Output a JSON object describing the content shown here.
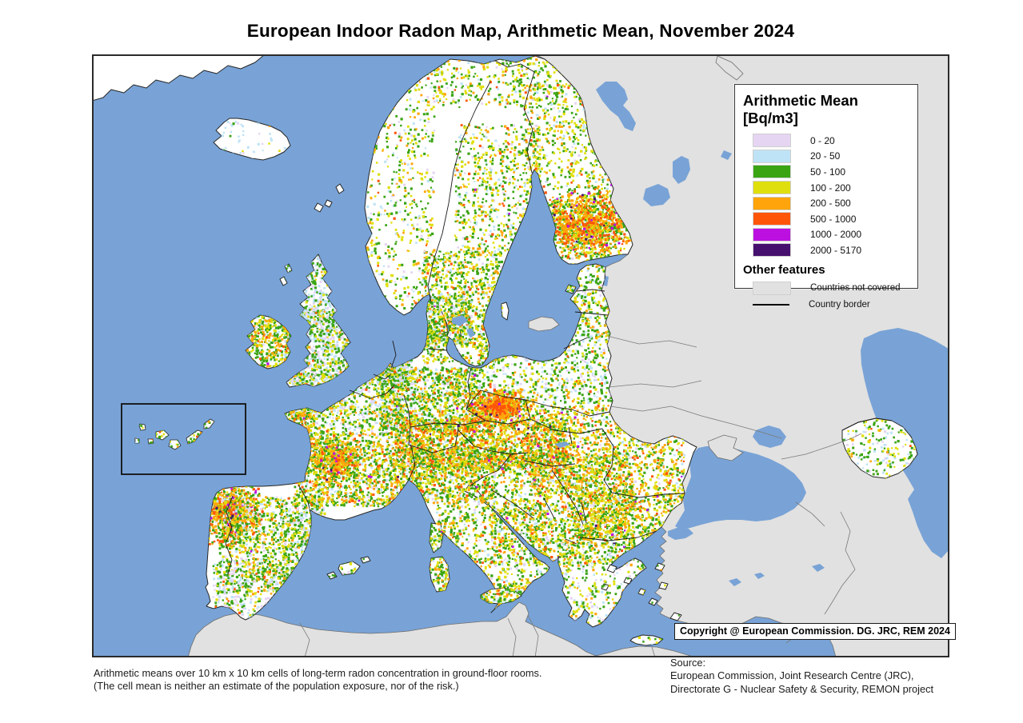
{
  "title": "European Indoor Radon Map, Arithmetic Mean, November 2024",
  "legend": {
    "title": "Arithmetic Mean [Bq/m3]",
    "classes": [
      {
        "label": "0 - 20",
        "color": "#E5D5F2"
      },
      {
        "label": "20 - 50",
        "color": "#BFE3F6"
      },
      {
        "label": "50 - 100",
        "color": "#3AA413"
      },
      {
        "label": "100 - 200",
        "color": "#E0DF0E"
      },
      {
        "label": "200 - 500",
        "color": "#FFA40A"
      },
      {
        "label": "500 - 1000",
        "color": "#FF5508"
      },
      {
        "label": "1000 - 2000",
        "color": "#BB10E0"
      },
      {
        "label": "2000 - 5170",
        "color": "#46106E"
      }
    ],
    "other_features_title": "Other features",
    "other_features": [
      {
        "label": "Countries not covered",
        "type": "swatch",
        "color": "#E1E1E1"
      },
      {
        "label": "Country border",
        "type": "line",
        "color": "#000000"
      }
    ]
  },
  "map": {
    "sea_color": "#79A3D6",
    "land_not_covered_color": "#E1E1E1",
    "land_covered_color": "#FFFFFF",
    "country_border_color": "#1a1a1a",
    "gray_border_color": "#7a7a7a",
    "copyright": "Copyright @ European Commission. DG. JRC, REM 2024",
    "cell_regions": [
      {
        "name": "iceland",
        "r": [
          150,
          70,
          100,
          65
        ],
        "n": 70,
        "w": [
          3,
          6,
          1,
          0.4,
          0.1,
          0,
          0,
          0
        ]
      },
      {
        "name": "finnmark",
        "r": [
          425,
          0,
          165,
          65
        ],
        "n": 400,
        "w": [
          0.8,
          1,
          4.5,
          3,
          1.3,
          0.4,
          0.05,
          0
        ]
      },
      {
        "name": "norway",
        "r": [
          342,
          20,
          85,
          300
        ],
        "n": 600,
        "w": [
          0.8,
          1,
          4,
          3,
          1.2,
          0.35,
          0.04,
          0
        ]
      },
      {
        "name": "sweden-north",
        "r": [
          452,
          85,
          108,
          165
        ],
        "n": 700,
        "w": [
          0.5,
          1,
          4.2,
          3.2,
          1.3,
          0.35,
          0.04,
          0
        ]
      },
      {
        "name": "sweden-south",
        "r": [
          412,
          245,
          100,
          140
        ],
        "n": 1100,
        "w": [
          0.6,
          1,
          4.5,
          3,
          1.1,
          0.3,
          0.03,
          0
        ]
      },
      {
        "name": "finland-north",
        "r": [
          538,
          35,
          115,
          130
        ],
        "n": 600,
        "w": [
          0.5,
          1,
          4,
          3,
          1.1,
          0.3,
          0.02,
          0
        ]
      },
      {
        "name": "finland-south",
        "r": [
          552,
          160,
          130,
          100
        ],
        "n": 1600,
        "w": [
          0.3,
          0.7,
          3.3,
          2.6,
          2.3,
          1.3,
          0.12,
          0.06
        ],
        "cluster": 1
      },
      {
        "name": "scotland",
        "r": [
          238,
          244,
          85,
          92
        ],
        "n": 800,
        "w": [
          2.2,
          3,
          1.8,
          0.5,
          0.15,
          0.03,
          0,
          0
        ]
      },
      {
        "name": "england-wales",
        "r": [
          240,
          318,
          92,
          102
        ],
        "n": 1300,
        "w": [
          2.6,
          3,
          2.4,
          1,
          0.3,
          0.06,
          0,
          0
        ]
      },
      {
        "name": "ireland",
        "r": [
          188,
          324,
          72,
          74
        ],
        "n": 700,
        "w": [
          0.5,
          0.9,
          4.2,
          2.6,
          1.4,
          0.35,
          0.02,
          0
        ]
      },
      {
        "name": "denmark",
        "r": [
          412,
          300,
          62,
          62
        ],
        "n": 380,
        "w": [
          1,
          1.6,
          4,
          1.6,
          0.4,
          0.05,
          0,
          0
        ]
      },
      {
        "name": "benelux",
        "r": [
          330,
          360,
          70,
          52
        ],
        "n": 650,
        "w": [
          4,
          2.6,
          1.6,
          0.7,
          0.2,
          0.03,
          0,
          0
        ]
      },
      {
        "name": "germany",
        "r": [
          360,
          390,
          120,
          80
        ],
        "n": 1200,
        "w": [
          1.2,
          1.8,
          3.8,
          2.2,
          0.8,
          0.2,
          0.02,
          0
        ]
      },
      {
        "name": "poland",
        "r": [
          480,
          348,
          168,
          88
        ],
        "n": 800,
        "w": [
          1.4,
          2,
          3.6,
          1.8,
          0.5,
          0.1,
          0.01,
          0
        ]
      },
      {
        "name": "baltics",
        "r": [
          540,
          260,
          108,
          92
        ],
        "n": 650,
        "w": [
          0.9,
          1.4,
          4,
          2.4,
          0.8,
          0.15,
          0,
          0
        ]
      },
      {
        "name": "czechia",
        "r": [
          462,
          415,
          92,
          48
        ],
        "n": 700,
        "w": [
          0.2,
          0.4,
          2,
          2.6,
          3,
          1.4,
          0.12,
          0.06
        ],
        "cluster": 1
      },
      {
        "name": "czech-core",
        "r": [
          478,
          428,
          58,
          24
        ],
        "n": 200,
        "w": [
          0,
          0.1,
          0.6,
          1.4,
          3,
          3,
          0.3,
          0.12
        ],
        "cluster": 1
      },
      {
        "name": "alps-austria",
        "r": [
          378,
          455,
          215,
          62
        ],
        "n": 1900,
        "w": [
          0.3,
          0.6,
          3.2,
          3,
          2.2,
          0.8,
          0.08,
          0.03
        ]
      },
      {
        "name": "france-north",
        "r": [
          250,
          398,
          140,
          76
        ],
        "n": 900,
        "w": [
          1.8,
          2,
          3.6,
          1.8,
          0.6,
          0.12,
          0.01,
          0
        ]
      },
      {
        "name": "brittany",
        "r": [
          215,
          428,
          58,
          42
        ],
        "n": 340,
        "w": [
          0.4,
          0.8,
          3.6,
          2,
          1.9,
          0.55,
          0.04,
          0
        ]
      },
      {
        "name": "france-south",
        "r": [
          252,
          472,
          148,
          92
        ],
        "n": 1500,
        "w": [
          0.7,
          1,
          4,
          2.6,
          1.3,
          0.4,
          0.04,
          0.01
        ]
      },
      {
        "name": "massif-central",
        "r": [
          272,
          478,
          66,
          56
        ],
        "n": 500,
        "w": [
          0.2,
          0.4,
          3,
          2.4,
          2.2,
          0.8,
          0.12,
          0.03
        ],
        "cluster": 1
      },
      {
        "name": "iberia-nw",
        "r": [
          126,
          520,
          92,
          96
        ],
        "n": 1000,
        "w": [
          0.35,
          0.55,
          3,
          2,
          2.5,
          1.3,
          0.2,
          0.1
        ],
        "cluster": 1
      },
      {
        "name": "iberia-center",
        "r": [
          158,
          552,
          130,
          120
        ],
        "n": 1100,
        "w": [
          1.1,
          1,
          4,
          2,
          0.8,
          0.2,
          0.02,
          0
        ]
      },
      {
        "name": "iberia-south",
        "r": [
          150,
          630,
          140,
          72
        ],
        "n": 520,
        "w": [
          2.4,
          1.5,
          2.6,
          1.2,
          0.4,
          0.08,
          0,
          0
        ]
      },
      {
        "name": "iberia-east",
        "r": [
          235,
          560,
          55,
          90
        ],
        "n": 300,
        "w": [
          1.6,
          1.4,
          3,
          1.4,
          0.4,
          0.06,
          0,
          0
        ]
      },
      {
        "name": "italy-north",
        "r": [
          398,
          490,
          105,
          70
        ],
        "n": 1000,
        "w": [
          0.8,
          1,
          4,
          2.6,
          1.2,
          0.3,
          0.03,
          0
        ]
      },
      {
        "name": "italy-south",
        "r": [
          430,
          560,
          145,
          132
        ],
        "n": 900,
        "w": [
          1,
          1,
          3.6,
          2.6,
          0.8,
          0.2,
          0.02,
          0
        ]
      },
      {
        "name": "wmed-islands",
        "r": [
          415,
          580,
          40,
          100
        ],
        "n": 300,
        "w": [
          0.4,
          0.7,
          3.6,
          2.6,
          1,
          0.3,
          0.04,
          0
        ]
      },
      {
        "name": "sicily",
        "r": [
          478,
          660,
          64,
          34
        ],
        "n": 170,
        "w": [
          0.5,
          0.8,
          3.6,
          2.6,
          1,
          0.3,
          0,
          0
        ]
      },
      {
        "name": "balkans",
        "r": [
          498,
          498,
          180,
          140
        ],
        "n": 1600,
        "w": [
          0.5,
          0.8,
          3.8,
          2.9,
          1.5,
          0.45,
          0.04,
          0.02
        ]
      },
      {
        "name": "pannonia",
        "r": [
          545,
          438,
          195,
          112
        ],
        "n": 1500,
        "w": [
          0.5,
          0.8,
          3,
          3,
          2,
          0.6,
          0.05,
          0.02
        ]
      },
      {
        "name": "bulgaria",
        "r": [
          600,
          548,
          138,
          58
        ],
        "n": 750,
        "w": [
          0.4,
          0.6,
          3.2,
          3.2,
          1.4,
          0.35,
          0.03,
          0
        ]
      },
      {
        "name": "greece",
        "r": [
          580,
          610,
          155,
          130
        ],
        "n": 700,
        "w": [
          1,
          1.6,
          3.2,
          1.8,
          0.6,
          0.12,
          0,
          0
        ]
      },
      {
        "name": "azerbaijan",
        "r": [
          935,
          452,
          100,
          82
        ],
        "n": 300,
        "w": [
          0.9,
          1.8,
          3.6,
          2,
          0.5,
          0.08,
          0,
          0
        ]
      },
      {
        "name": "canaries",
        "r": [
          45,
          448,
          140,
          62
        ],
        "n": 520,
        "w": [
          0.4,
          0.5,
          4,
          2,
          1,
          0.5,
          0.05,
          0
        ]
      },
      {
        "name": "cyprus",
        "r": [
          842,
          712,
          46,
          22
        ],
        "n": 55,
        "w": [
          1.4,
          2.6,
          3,
          0.8,
          0.15,
          0,
          0,
          0
        ]
      },
      {
        "name": "balearics",
        "r": [
          296,
          626,
          56,
          30
        ],
        "n": 80,
        "w": [
          0.6,
          0.8,
          3.4,
          2,
          0.6,
          0.1,
          0,
          0
        ]
      }
    ]
  },
  "footer": {
    "note_line1": "Arithmetic means over 10 km x 10 km cells of long-term radon concentration in ground-floor rooms.",
    "note_line2": "(The cell mean is neither an estimate of the population exposure, nor of the risk.)",
    "source_label": "Source:",
    "source_line1": "European Commission, Joint Research Centre (JRC),",
    "source_line2": "Directorate G - Nuclear Safety & Security, REMON project"
  }
}
